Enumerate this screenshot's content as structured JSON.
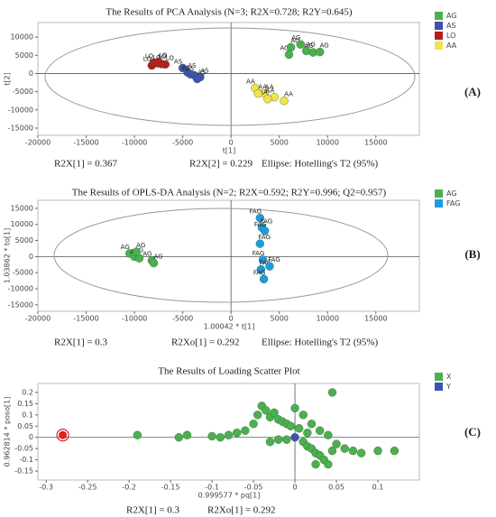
{
  "chart_data": [
    {
      "type": "scatter",
      "title": "The Results of PCA Analysis (N=3; R2X=0.728; R2Y=0.645)",
      "panel": "(A)",
      "x_label": "t[1]",
      "y_label": "t[2]",
      "xlim": [
        -20000,
        19500
      ],
      "ylim": [
        -17000,
        14000
      ],
      "xticks": [
        -20000,
        -15000,
        -10000,
        -5000,
        0,
        5000,
        10000,
        15000
      ],
      "yticks": [
        -15000,
        -10000,
        -5000,
        0,
        5000,
        10000
      ],
      "zero_lines": true,
      "ellipse": true,
      "point_labels": true,
      "notes": [
        "R2X[1] = 0.367",
        "R2X[2] = 0.229",
        "Ellipse: Hotelling's T2 (95%)"
      ],
      "series": [
        {
          "name": "AG",
          "color": "#4caf50",
          "x": [
            6000,
            6200,
            7200,
            7800,
            8500,
            9200
          ],
          "y": [
            5200,
            7200,
            8000,
            6200,
            5800,
            5900
          ]
        },
        {
          "name": "AS",
          "color": "#3f51b5",
          "x": [
            -5000,
            -4500,
            -3800,
            -3200,
            -4200,
            -3500
          ],
          "y": [
            1500,
            300,
            -500,
            -1000,
            -200,
            -1500
          ]
        },
        {
          "name": "LO",
          "color": "#b71c1c",
          "x": [
            -8000,
            -7600,
            -7200,
            -6800,
            -8200,
            -7500
          ],
          "y": [
            3000,
            2800,
            2600,
            2500,
            2200,
            3200
          ]
        },
        {
          "name": "AA",
          "color": "#f2e34c",
          "x": [
            2500,
            3500,
            4500,
            5500,
            3800,
            2800
          ],
          "y": [
            -4000,
            -5500,
            -6500,
            -7500,
            -7000,
            -5500
          ]
        }
      ]
    },
    {
      "type": "scatter",
      "title": "The Results of OPLS-DA Analysis (N=2; R2X=0.592; R2Y=0.996; Q2=0.957)",
      "panel": "(B)",
      "x_label": "1.00042 * t[1]",
      "y_label": "1.03862 * to[1]",
      "xlim": [
        -20000,
        19500
      ],
      "ylim": [
        -17000,
        17500
      ],
      "xticks": [
        -20000,
        -15000,
        -10000,
        -5000,
        0,
        5000,
        10000,
        15000
      ],
      "yticks": [
        -15000,
        -10000,
        -5000,
        0,
        5000,
        10000,
        15000
      ],
      "zero_lines": true,
      "ellipse": true,
      "point_labels": true,
      "notes": [
        "R2X[1] = 0.3",
        "R2Xo[1] = 0.292",
        "Ellipse: Hotelling's T2 (95%)"
      ],
      "series": [
        {
          "name": "AG",
          "color": "#4caf50",
          "x": [
            -10500,
            -10000,
            -9500,
            -9800,
            -8200,
            -8000
          ],
          "y": [
            1000,
            0,
            -500,
            1500,
            -1200,
            -2000
          ]
        },
        {
          "name": "FAG",
          "color": "#1e9be0",
          "x": [
            3000,
            3200,
            3500,
            3000,
            3300,
            3100,
            3400,
            4000
          ],
          "y": [
            12000,
            9000,
            8000,
            4000,
            -1000,
            -4000,
            -7000,
            -3000
          ]
        }
      ]
    },
    {
      "type": "scatter",
      "title": "The Results of Loading Scatter Plot",
      "panel": "(C)",
      "x_label": "0.999577 * pq[1]",
      "y_label": "0.962814 * poso[1]",
      "xlim": [
        -0.31,
        0.15
      ],
      "ylim": [
        -0.19,
        0.24
      ],
      "xticks": [
        -0.3,
        -0.25,
        -0.2,
        -0.15,
        -0.1,
        -0.05,
        0,
        0.05,
        0.1
      ],
      "yticks": [
        -0.15,
        -0.1,
        -0.05,
        0,
        0.05,
        0.1,
        0.15,
        0.2
      ],
      "zero_lines": true,
      "ellipse": false,
      "point_labels": false,
      "notes": [
        "R2X[1] = 0.3",
        "R2Xo[1] = 0.292"
      ],
      "highlight": {
        "x": -0.28,
        "y": 0.01,
        "color": "#e02020"
      },
      "series": [
        {
          "name": "X",
          "color": "#4caf50",
          "x": [
            -0.19,
            -0.14,
            -0.13,
            -0.1,
            -0.09,
            -0.08,
            -0.07,
            -0.06,
            -0.05,
            -0.045,
            -0.04,
            -0.035,
            -0.03,
            -0.025,
            -0.02,
            -0.015,
            -0.01,
            -0.005,
            0.005,
            0.01,
            0.015,
            0.02,
            0.025,
            0.03,
            0.035,
            0.04,
            0.045,
            0.05,
            0.06,
            0.07,
            0.08,
            0.1,
            0.12,
            -0.03,
            -0.02,
            0.0,
            0.01,
            0.02,
            0.03,
            0.04,
            0.045,
            -0.01,
            0.015,
            0.025
          ],
          "y": [
            0.01,
            0.0,
            0.01,
            0.005,
            0.0,
            0.01,
            0.02,
            0.03,
            0.06,
            0.1,
            0.14,
            0.12,
            0.09,
            0.11,
            0.08,
            0.07,
            0.06,
            0.05,
            0.04,
            -0.02,
            -0.04,
            -0.05,
            -0.07,
            -0.08,
            -0.1,
            -0.12,
            -0.06,
            -0.03,
            -0.05,
            -0.06,
            -0.07,
            -0.06,
            -0.06,
            -0.02,
            -0.01,
            0.13,
            0.1,
            0.06,
            0.03,
            0.01,
            0.2,
            -0.01,
            0.02,
            -0.12
          ]
        },
        {
          "name": "Y",
          "color": "#3f51b5",
          "x": [
            0.0
          ],
          "y": [
            0.0
          ]
        }
      ]
    }
  ]
}
